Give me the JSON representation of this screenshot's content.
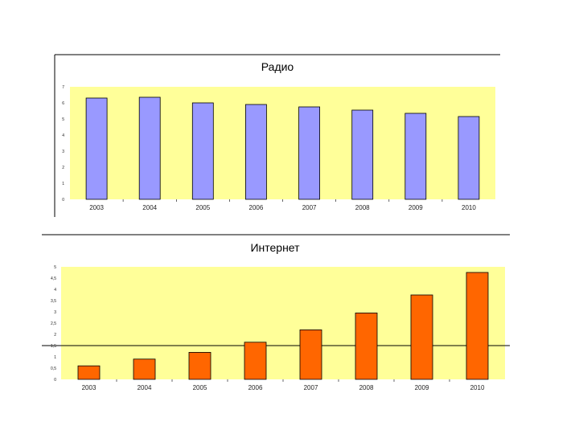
{
  "colors": {
    "plot_bg": "#ffff99",
    "bar_radio": "#9999ff",
    "bar_internet": "#ff6600",
    "bar_stroke": "#000000"
  },
  "chart_data": [
    {
      "type": "bar",
      "title": "Радио",
      "categories": [
        "2003",
        "2004",
        "2005",
        "2006",
        "2007",
        "2008",
        "2009",
        "2010"
      ],
      "values": [
        6.3,
        6.35,
        6.0,
        5.9,
        5.75,
        5.55,
        5.35,
        5.15
      ],
      "ylim": [
        0,
        7
      ],
      "yticks": [
        0,
        1,
        2,
        3,
        4,
        5,
        6,
        7
      ],
      "ytick_labels": [
        "0",
        "1",
        "2",
        "3",
        "4",
        "5",
        "6",
        "7"
      ],
      "grid": false,
      "legend": "none"
    },
    {
      "type": "bar",
      "title": "Интернет",
      "categories": [
        "2003",
        "2004",
        "2005",
        "2006",
        "2007",
        "2008",
        "2009",
        "2010"
      ],
      "values": [
        0.6,
        0.9,
        1.2,
        1.65,
        2.2,
        2.95,
        3.75,
        4.75
      ],
      "ylim": [
        0,
        5
      ],
      "yticks": [
        0,
        0.5,
        1,
        1.5,
        2,
        2.5,
        3,
        3.5,
        4,
        4.5,
        5
      ],
      "ytick_labels": [
        "0",
        "0,5",
        "1",
        "1,5",
        "2",
        "2,5",
        "3",
        "3,5",
        "4",
        "4,5",
        "5"
      ],
      "grid": false,
      "legend": "none"
    }
  ]
}
